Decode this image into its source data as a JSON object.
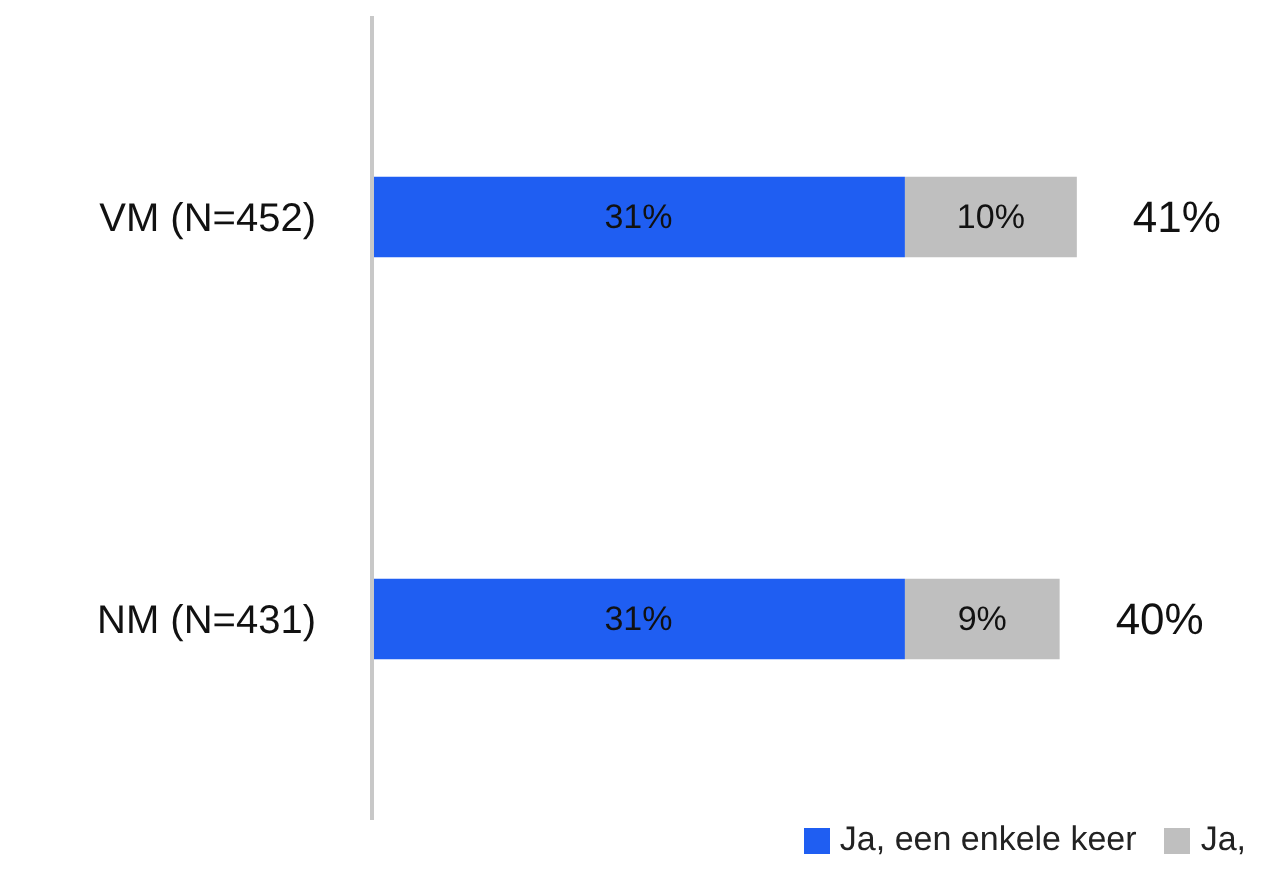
{
  "chart_data": {
    "type": "bar",
    "orientation": "horizontal",
    "stacked": true,
    "categories": [
      "VM (N=452)",
      "NM (N=431)"
    ],
    "series": [
      {
        "name": "Ja, een enkele keer",
        "color": "#1f5ef2",
        "values": [
          31,
          31
        ],
        "value_labels": [
          "31%",
          "31%"
        ]
      },
      {
        "name": "Ja,",
        "color": "#bfbfbf",
        "values": [
          10,
          9
        ],
        "value_labels": [
          "10%",
          "9%"
        ]
      }
    ],
    "totals": [
      "41%",
      "40%"
    ],
    "legend": "bottom right"
  }
}
